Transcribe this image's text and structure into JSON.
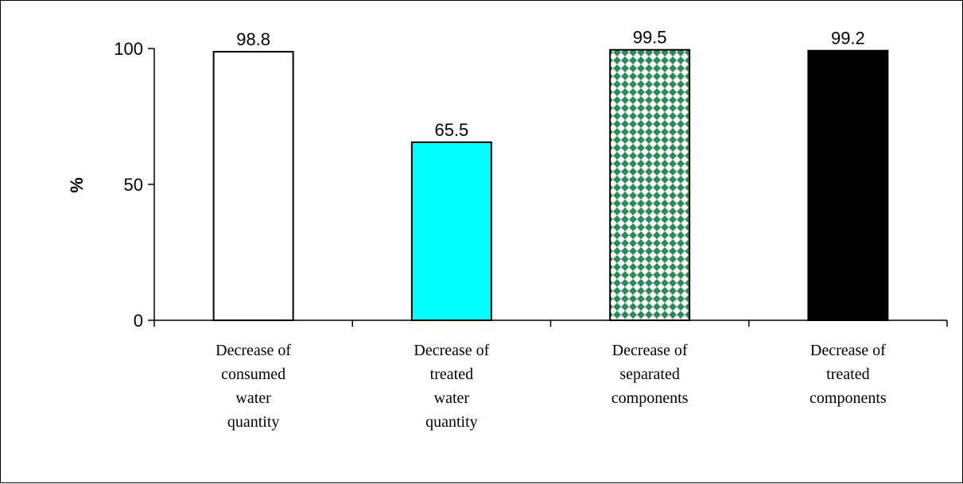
{
  "chart_data": {
    "type": "bar",
    "title": "",
    "xlabel": "",
    "ylabel": "%",
    "ylim": [
      0,
      100
    ],
    "yticks": [
      0,
      50,
      100
    ],
    "grid": false,
    "legend": "none",
    "categories": [
      [
        "Decrease of",
        "consumed",
        "water",
        "quantity"
      ],
      [
        "Decrease of",
        "treated",
        "water",
        "quantity"
      ],
      [
        "Decrease of",
        "separated",
        "components"
      ],
      [
        "Decrease of",
        "treated",
        "components"
      ]
    ],
    "values": [
      98.8,
      65.5,
      99.5,
      99.2
    ],
    "data_labels": [
      "98.8",
      "65.5",
      "99.5",
      "99.2"
    ],
    "bar_fills": [
      "#ffffff",
      "#00ffff",
      "pattern-green-diamond",
      "#000000"
    ],
    "pattern_colors": {
      "green": "#2e8b57",
      "white": "#ffffff"
    }
  }
}
